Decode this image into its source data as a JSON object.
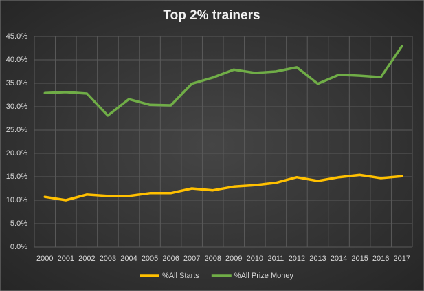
{
  "chart_data": {
    "type": "line",
    "title": "Top 2% trainers",
    "categories": [
      "2000",
      "2001",
      "2002",
      "2003",
      "2004",
      "2005",
      "2006",
      "2007",
      "2008",
      "2009",
      "2010",
      "2011",
      "2012",
      "2013",
      "2014",
      "2015",
      "2016",
      "2017"
    ],
    "series": [
      {
        "name": "%All Starts",
        "color": "#ffc000",
        "values": [
          10.7,
          10.0,
          11.2,
          10.9,
          10.9,
          11.5,
          11.5,
          12.5,
          12.1,
          12.9,
          13.2,
          13.7,
          14.9,
          14.1,
          14.9,
          15.4,
          14.7,
          15.1
        ]
      },
      {
        "name": "%All Prize Money",
        "color": "#70ad47",
        "values": [
          32.9,
          33.1,
          32.8,
          28.1,
          31.6,
          30.4,
          30.3,
          34.9,
          36.2,
          37.9,
          37.2,
          37.5,
          38.4,
          34.9,
          36.8,
          36.6,
          36.3,
          42.9
        ]
      }
    ],
    "ylim": [
      0,
      45
    ],
    "yticks": [
      {
        "value": 0,
        "label": "0.0%"
      },
      {
        "value": 5,
        "label": "5.0%"
      },
      {
        "value": 10,
        "label": "10.0%"
      },
      {
        "value": 15,
        "label": "15.0%"
      },
      {
        "value": 20,
        "label": "20.0%"
      },
      {
        "value": 25,
        "label": "25.0%"
      },
      {
        "value": 30,
        "label": "30.0%"
      },
      {
        "value": 35,
        "label": "35.0%"
      },
      {
        "value": 40,
        "label": "40.0%"
      },
      {
        "value": 45,
        "label": "45.0%"
      }
    ],
    "grid": true,
    "legend": "bottom"
  }
}
